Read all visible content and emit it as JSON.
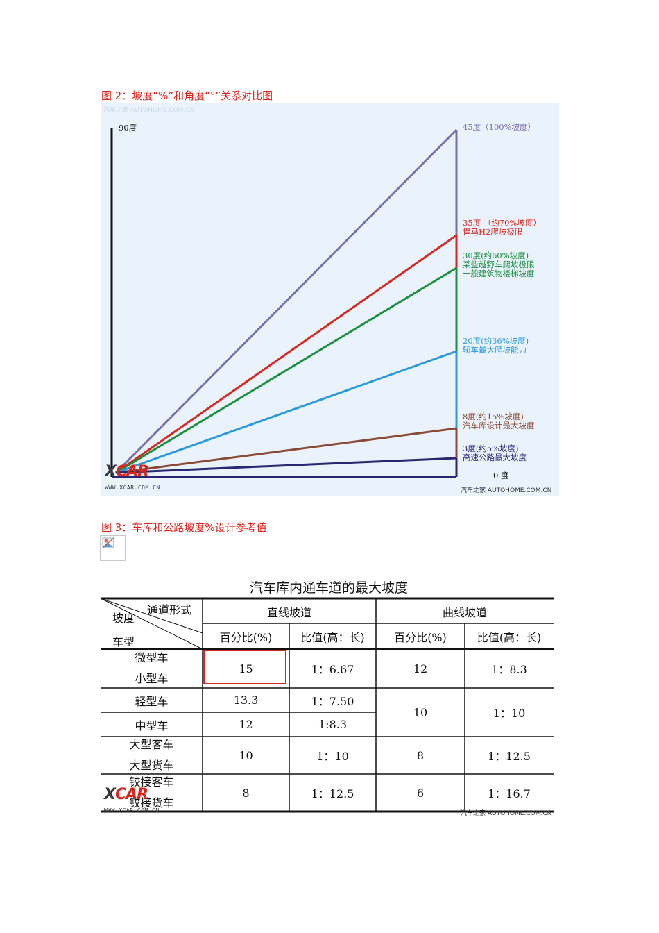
{
  "figure2": {
    "caption": "图 2：坡度“%”和角度“°”关系对比图",
    "faint_watermark": "汽车之家 AUTOHOME.COM.CN",
    "top_label": "90度",
    "bottom_label": "0 度",
    "colors": {
      "45": "#7a6fa8",
      "35": "#d7261e",
      "30": "#1b8f3f",
      "20": "#2a9bd8",
      "8": "#8a4a35",
      "3": "#2a2870",
      "axis": "#111111",
      "base": "#2a2870"
    },
    "labels": [
      {
        "key": "45",
        "lines": [
          "45度（100%坡度）"
        ],
        "color": "#7a6fa8"
      },
      {
        "key": "35",
        "lines": [
          "35度 （约70%坡度）",
          "悍马H2爬坡极限"
        ],
        "color": "#d7261e"
      },
      {
        "key": "30",
        "lines": [
          "30度(约60%坡度)",
          "某些越野车爬坡极限",
          "一般建筑物楼梯坡度"
        ],
        "color": "#1b8f3f"
      },
      {
        "key": "20",
        "lines": [
          "20度(约36%坡度)",
          "轿车最大爬坡能力"
        ],
        "color": "#2a9bd8"
      },
      {
        "key": "8",
        "lines": [
          "8度(约15%坡度)",
          "汽车库设计最大坡度"
        ],
        "color": "#8a4a35"
      },
      {
        "key": "3",
        "lines": [
          "3度(约5%坡度)",
          "高速公路最大坡度"
        ],
        "color": "#2a2870"
      }
    ],
    "watermark_left": {
      "logo_x": "X",
      "logo_rest": "CAR",
      "url": "WWW.XCAR.COM.CN"
    },
    "watermark_right": "汽车之家  AUTOHOME.COM.CN"
  },
  "figure3": {
    "caption": "图 3：车库和公路坡度%设计参考值",
    "table_title": "汽车库内通车道的最大坡度",
    "header": {
      "corner_top": "通道形式",
      "corner_mid": "坡度",
      "corner_bottom": "车型",
      "group1": "直线坡道",
      "group2": "曲线坡道",
      "sub_percent": "百分比(%)",
      "sub_ratio": "比值(高：长)"
    },
    "rows": [
      {
        "type_lines": [
          "微型车",
          "小型车"
        ],
        "straight_pct": "15",
        "straight_ratio": "1：6.67",
        "curve_pct": "12",
        "curve_ratio": "1：8.3"
      },
      {
        "type_lines": [
          "轻型车"
        ],
        "straight_pct": "13.3",
        "straight_ratio": "1：7.50"
      },
      {
        "type_lines": [
          "中型车"
        ],
        "straight_pct": "12",
        "straight_ratio": "1:8.3"
      },
      {
        "type_lines": [
          "大型客车",
          "大型货车"
        ],
        "straight_pct": "10",
        "straight_ratio": "1：10",
        "curve_pct": "8",
        "curve_ratio": "1：12.5"
      },
      {
        "type_lines": [
          "铰接客车",
          "铰接货车"
        ],
        "straight_pct": "8",
        "straight_ratio": "1：12.5",
        "curve_pct": "6",
        "curve_ratio": "1：16.7"
      }
    ],
    "merged_curve": {
      "pct": "10",
      "ratio": "1：10"
    },
    "highlight_color": "#d7261e",
    "watermark_left": {
      "logo_x": "X",
      "logo_rest": "CAR",
      "url": "WWW.XCAR.COM.CN"
    },
    "watermark_right": "汽车之家  AUTOHOME.COM.CN"
  }
}
